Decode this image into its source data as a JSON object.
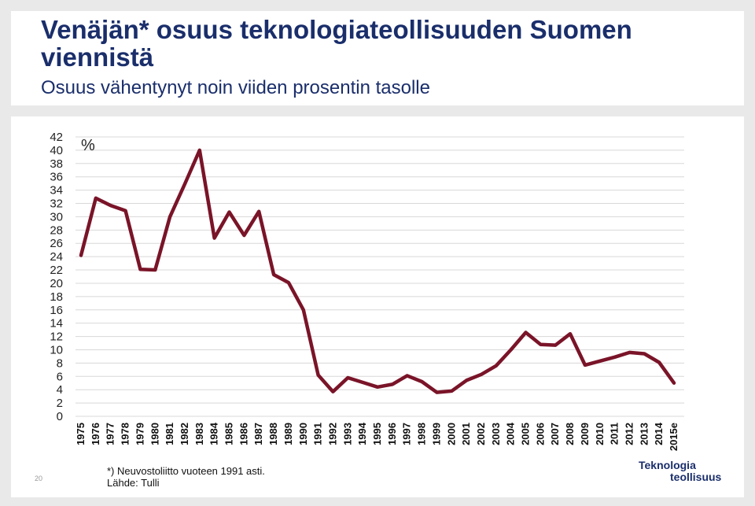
{
  "header": {
    "title": "Venäjän* osuus teknologiateollisuuden Suomen viennistä",
    "subtitle": "Osuus vähentynyt noin viiden prosentin tasolle"
  },
  "footer": {
    "page_number": "20",
    "note": "*) Neuvostoliitto vuoteen 1991 asti.",
    "source": "Lähde: Tulli",
    "logo_line1": "Teknologia",
    "logo_line2": "teollisuus"
  },
  "colors": {
    "line": "#7a1428",
    "title": "#1a2e6b",
    "grid": "#d8d8d8"
  },
  "chart_data": {
    "type": "line",
    "title": "",
    "ylabel": "%",
    "xlabel": "",
    "ylim": [
      0,
      42
    ],
    "yticks": [
      0,
      2,
      4,
      6,
      8,
      10,
      12,
      14,
      16,
      18,
      20,
      22,
      24,
      26,
      28,
      30,
      32,
      34,
      36,
      38,
      40,
      42
    ],
    "grid": true,
    "categories": [
      "1975",
      "1976",
      "1977",
      "1978",
      "1979",
      "1980",
      "1981",
      "1982",
      "1983",
      "1984",
      "1985",
      "1986",
      "1987",
      "1988",
      "1989",
      "1990",
      "1991",
      "1992",
      "1993",
      "1994",
      "1995",
      "1996",
      "1997",
      "1998",
      "1999",
      "2000",
      "2001",
      "2002",
      "2003",
      "2004",
      "2005",
      "2006",
      "2007",
      "2008",
      "2009",
      "2010",
      "2011",
      "2012",
      "2013",
      "2014",
      "2015e"
    ],
    "series": [
      {
        "values": [
          24.2,
          32.8,
          31.7,
          30.9,
          22.1,
          22.0,
          30.0,
          34.9,
          40.0,
          26.8,
          30.7,
          27.2,
          30.8,
          21.3,
          20.1,
          16.0,
          6.2,
          3.7,
          5.8,
          5.1,
          4.4,
          4.8,
          6.1,
          5.2,
          3.6,
          3.8,
          5.4,
          6.3,
          7.6,
          10.0,
          12.6,
          10.8,
          10.7,
          12.4,
          7.7,
          8.3,
          8.9,
          9.6,
          9.4,
          8.1,
          5.0
        ]
      }
    ]
  }
}
